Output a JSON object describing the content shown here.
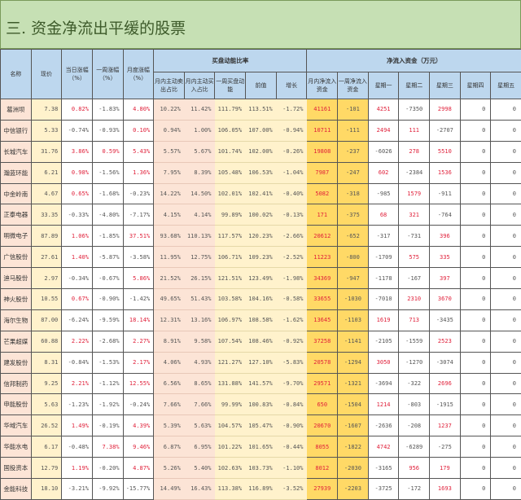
{
  "title": "三. 资金净流出平缓的股票",
  "headers": {
    "name": "名称",
    "price": "现价",
    "day_chg": "当日涨幅（%）",
    "week_chg": "一周涨幅（%）",
    "month_chg": "月度涨幅（%）",
    "group_buy": "买盘动能比率",
    "group_flow": "净流入资金（万元）",
    "sell_ratio": "月内主动卖出占比",
    "buy_ratio": "月内主动买入占比",
    "week_momentum": "一周买盘动能",
    "prev": "前值",
    "growth": "增长",
    "month_flow": "月内净流入资金",
    "week_flow": "一周净流入资金",
    "mon": "星期一",
    "tue": "星期二",
    "wed": "星期三",
    "thu": "星期四",
    "fri": "星期五"
  },
  "colors": {
    "positive": "#e0203a",
    "header": "#bdd7ee",
    "title_bg": "#c6e0b4"
  },
  "rows": [
    [
      "葛洲坝",
      "7.38",
      "0.82%",
      "-1.83%",
      "4.80%",
      "10.22%",
      "11.42%",
      "111.79%",
      "113.51%",
      "-1.72%",
      "41161",
      "-101",
      "4251",
      "-7350",
      "2998",
      "0",
      "0"
    ],
    [
      "中信银行",
      "5.33",
      "-0.74%",
      "-0.93%",
      "0.10%",
      "0.94%",
      "1.00%",
      "106.05%",
      "107.00%",
      "-0.94%",
      "10711",
      "-111",
      "2494",
      "111",
      "-2707",
      "0",
      "0"
    ],
    [
      "长城汽车",
      "31.76",
      "3.86%",
      "0.59%",
      "5.43%",
      "5.57%",
      "5.67%",
      "101.74%",
      "102.00%",
      "-0.26%",
      "19808",
      "-237",
      "-6026",
      "278",
      "5510",
      "0",
      "0"
    ],
    [
      "瀚蓝环能",
      "6.21",
      "0.98%",
      "-1.56%",
      "1.36%",
      "7.95%",
      "8.39%",
      "105.48%",
      "106.53%",
      "-1.04%",
      "7987",
      "-247",
      "602",
      "-2384",
      "1536",
      "0",
      "0"
    ],
    [
      "中金岭南",
      "4.67",
      "0.65%",
      "-1.68%",
      "-0.23%",
      "14.22%",
      "14.50%",
      "102.01%",
      "102.41%",
      "-0.40%",
      "5082",
      "-318",
      "-985",
      "1579",
      "-911",
      "0",
      "0"
    ],
    [
      "正泰电器",
      "33.35",
      "-0.33%",
      "-4.80%",
      "-7.17%",
      "4.15%",
      "4.14%",
      "99.89%",
      "100.02%",
      "-0.13%",
      "171",
      "-375",
      "68",
      "321",
      "-764",
      "0",
      "0"
    ],
    [
      "明微电子",
      "87.89",
      "1.06%",
      "-1.85%",
      "37.51%",
      "93.68%",
      "110.13%",
      "117.57%",
      "120.23%",
      "-2.66%",
      "20612",
      "-652",
      "-317",
      "-731",
      "396",
      "0",
      "0"
    ],
    [
      "广信股份",
      "27.61",
      "1.40%",
      "-5.87%",
      "-3.58%",
      "11.95%",
      "12.75%",
      "106.71%",
      "109.23%",
      "-2.52%",
      "11223",
      "-800",
      "-1709",
      "575",
      "335",
      "0",
      "0"
    ],
    [
      "迪马股份",
      "2.97",
      "-0.34%",
      "-0.67%",
      "5.86%",
      "21.52%",
      "26.15%",
      "121.51%",
      "123.49%",
      "-1.98%",
      "34369",
      "-947",
      "-1178",
      "-167",
      "397",
      "0",
      "0"
    ],
    [
      "神火股份",
      "10.55",
      "0.67%",
      "-0.90%",
      "-1.42%",
      "49.65%",
      "51.43%",
      "103.58%",
      "104.16%",
      "-0.58%",
      "33655",
      "-1030",
      "-7010",
      "2310",
      "3670",
      "0",
      "0"
    ],
    [
      "海尔生物",
      "87.00",
      "-6.24%",
      "-9.59%",
      "18.14%",
      "12.31%",
      "13.16%",
      "106.97%",
      "108.58%",
      "-1.62%",
      "13645",
      "-1103",
      "1619",
      "713",
      "-3435",
      "0",
      "0"
    ],
    [
      "芒果超媒",
      "60.88",
      "2.22%",
      "-2.68%",
      "2.27%",
      "8.91%",
      "9.58%",
      "107.54%",
      "108.46%",
      "-0.92%",
      "37258",
      "-1141",
      "-2105",
      "-1559",
      "2523",
      "0",
      "0"
    ],
    [
      "建发股份",
      "8.31",
      "-0.84%",
      "-1.53%",
      "2.17%",
      "4.06%",
      "4.93%",
      "121.27%",
      "127.10%",
      "-5.83%",
      "20578",
      "-1294",
      "3050",
      "-1270",
      "-3074",
      "0",
      "0"
    ],
    [
      "信邦制药",
      "9.25",
      "2.21%",
      "-1.12%",
      "12.55%",
      "6.56%",
      "8.65%",
      "131.88%",
      "141.57%",
      "-9.70%",
      "29571",
      "-1321",
      "-3694",
      "-322",
      "2696",
      "0",
      "0"
    ],
    [
      "申能股份",
      "5.63",
      "-1.23%",
      "-1.92%",
      "-0.24%",
      "7.66%",
      "7.66%",
      "99.99%",
      "100.83%",
      "-0.84%",
      "650",
      "-1504",
      "1214",
      "-803",
      "-1915",
      "0",
      "0"
    ],
    [
      "华域汽车",
      "26.52",
      "1.49%",
      "-0.19%",
      "4.39%",
      "5.39%",
      "5.63%",
      "104.57%",
      "105.47%",
      "-0.90%",
      "20670",
      "-1607",
      "-2636",
      "-208",
      "1237",
      "0",
      "0"
    ],
    [
      "华能水电",
      "6.17",
      "-0.48%",
      "7.38%",
      "9.46%",
      "6.87%",
      "6.95%",
      "101.22%",
      "101.65%",
      "-0.44%",
      "8055",
      "-1822",
      "4742",
      "-6289",
      "-275",
      "0",
      "0"
    ],
    [
      "国投资本",
      "12.79",
      "1.19%",
      "-0.20%",
      "4.87%",
      "5.26%",
      "5.40%",
      "102.63%",
      "103.73%",
      "-1.10%",
      "8012",
      "-2030",
      "-3165",
      "956",
      "179",
      "0",
      "0"
    ],
    [
      "金能科技",
      "18.10",
      "-3.21%",
      "-9.92%",
      "-15.77%",
      "14.49%",
      "16.43%",
      "113.38%",
      "116.89%",
      "-3.52%",
      "27939",
      "-2203",
      "-3725",
      "-172",
      "1693",
      "0",
      "0"
    ]
  ]
}
